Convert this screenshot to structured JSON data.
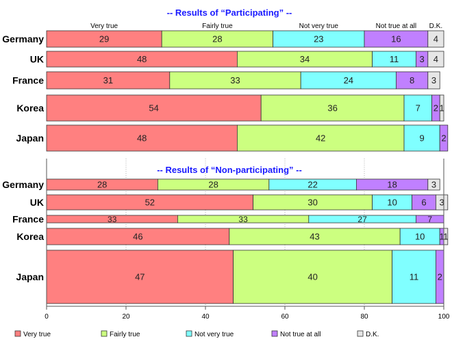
{
  "chart_data": {
    "type": "bar",
    "orientation": "horizontal",
    "stacked": true,
    "xlim": [
      0,
      100
    ],
    "x_ticks": [
      "0",
      "20",
      "40",
      "60",
      "80",
      "100"
    ],
    "series_names": [
      "Very true",
      "Fairly true",
      "Not very true",
      "Not true at all",
      "D.K."
    ],
    "colors": [
      "#ff8080",
      "#ccff80",
      "#80ffff",
      "#c080ff",
      "#e6e6e6"
    ],
    "legend": {
      "placement": "bottom",
      "labels": [
        "Very true",
        "Fairly true",
        "Not very true",
        "Not true at all",
        "D.K."
      ]
    },
    "panels": [
      {
        "title": "-- Results of “Participating” --",
        "column_labels": [
          "Very true",
          "Fairly true",
          "Not very true",
          "Not true at all",
          "D.K."
        ],
        "rows": [
          {
            "category": "Germany",
            "values": [
              29,
              28,
              23,
              16,
              4
            ]
          },
          {
            "category": "UK",
            "values": [
              48,
              34,
              11,
              3,
              4
            ]
          },
          {
            "category": "France",
            "values": [
              31,
              33,
              24,
              8,
              3
            ]
          },
          {
            "category": "Korea",
            "values": [
              54,
              36,
              7,
              2,
              1
            ]
          },
          {
            "category": "Japan",
            "values": [
              48,
              42,
              9,
              2,
              0
            ]
          }
        ]
      },
      {
        "title": "-- Results of “Non-participating” --",
        "rows": [
          {
            "category": "Germany",
            "values": [
              28,
              28,
              22,
              18,
              3
            ]
          },
          {
            "category": "UK",
            "values": [
              52,
              30,
              10,
              6,
              3
            ]
          },
          {
            "category": "France",
            "values": [
              33,
              33,
              27,
              7,
              0
            ]
          },
          {
            "category": "Korea",
            "values": [
              46,
              43,
              10,
              1,
              1
            ]
          },
          {
            "category": "Japan",
            "values": [
              47,
              40,
              11,
              2,
              0
            ]
          }
        ]
      }
    ]
  }
}
